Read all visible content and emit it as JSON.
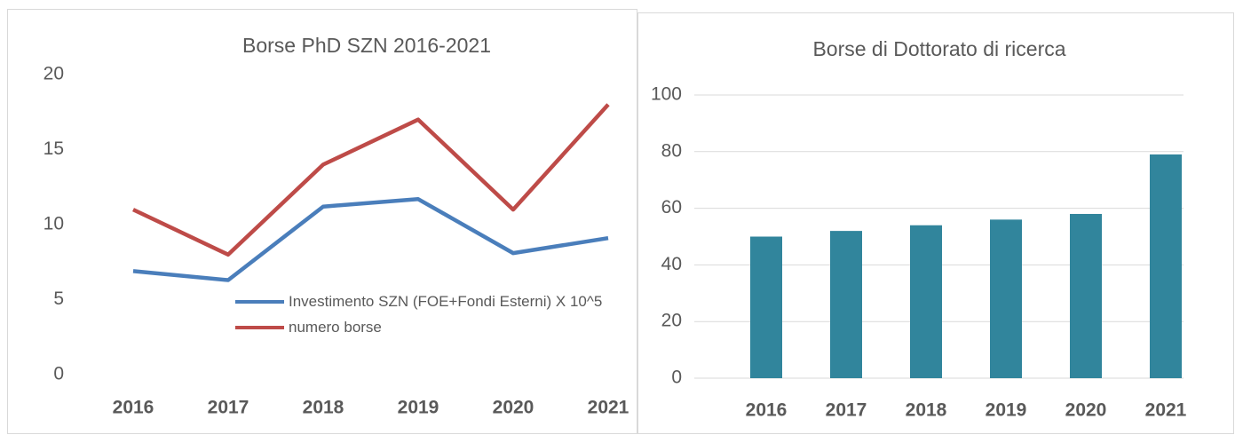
{
  "chart_data": [
    {
      "type": "line",
      "title": "Borse PhD SZN 2016-2021",
      "categories": [
        "2016",
        "2017",
        "2018",
        "2019",
        "2020",
        "2021"
      ],
      "series": [
        {
          "name": "Investimento SZN (FOE+Fondi Esterni) X 10^5",
          "color": "#4a7ebb",
          "values": [
            6.9,
            6.3,
            11.2,
            11.7,
            8.1,
            9.1
          ]
        },
        {
          "name": "numero borse",
          "color": "#be4b48",
          "values": [
            11,
            8,
            14,
            17,
            11,
            18
          ]
        }
      ],
      "ylim": [
        0,
        20
      ],
      "yticks": [
        0,
        5,
        10,
        15,
        20
      ],
      "grid": false,
      "legend": "bottom"
    },
    {
      "type": "bar",
      "title": "Borse di Dottorato di ricerca",
      "categories": [
        "2016",
        "2017",
        "2018",
        "2019",
        "2020",
        "2021"
      ],
      "values": [
        50,
        52,
        54,
        56,
        58,
        79
      ],
      "color": "#31859c",
      "ylim": [
        0,
        100
      ],
      "yticks": [
        0,
        20,
        40,
        60,
        80,
        100
      ],
      "grid": true
    }
  ]
}
